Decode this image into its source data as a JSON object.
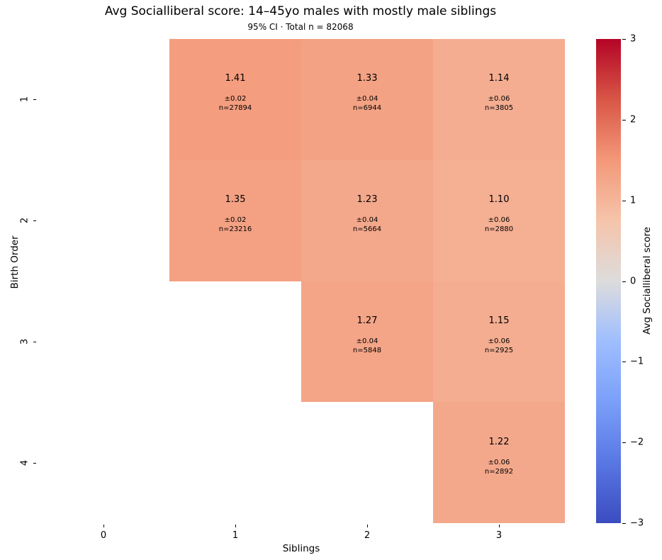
{
  "chart_data": {
    "type": "heatmap",
    "title": "Avg Socialliberal score: 14–45yo males with mostly male siblings",
    "subtitle": "95% CI · Total n = 82068",
    "xlabel": "Siblings",
    "ylabel": "Birth Order",
    "x_tick_labels": [
      "0",
      "1",
      "2",
      "3"
    ],
    "y_tick_labels": [
      "1",
      "2",
      "3",
      "4"
    ],
    "vmin": -3,
    "vmax": 3,
    "grid": false,
    "background": "#ffffff",
    "colorbar": {
      "label": "Avg Socialliberal score",
      "tick_labels": [
        "3",
        "2",
        "1",
        "0",
        "−1",
        "−2",
        "−3"
      ],
      "tick_values": [
        3,
        2,
        1,
        0,
        -1,
        -2,
        -3
      ]
    },
    "colormap": {
      "name": "coolwarm",
      "stops": [
        {
          "t": 0.0,
          "hex": "#3B4CC0"
        },
        {
          "t": 0.125,
          "hex": "#5977E3"
        },
        {
          "t": 0.25,
          "hex": "#7B9FF9"
        },
        {
          "t": 0.375,
          "hex": "#9EBEFF"
        },
        {
          "t": 0.5,
          "hex": "#DDDCDC"
        },
        {
          "t": 0.625,
          "hex": "#F5C4AA"
        },
        {
          "t": 0.75,
          "hex": "#F49879"
        },
        {
          "t": 0.875,
          "hex": "#D85646"
        },
        {
          "t": 1.0,
          "hex": "#B40426"
        }
      ]
    },
    "rows": [
      {
        "y_label": "1",
        "cells": [
          null,
          {
            "value": 1.41,
            "value_label": "1.41",
            "ci_label": "±0.02",
            "n_label": "n=27894"
          },
          {
            "value": 1.33,
            "value_label": "1.33",
            "ci_label": "±0.04",
            "n_label": "n=6944"
          },
          {
            "value": 1.14,
            "value_label": "1.14",
            "ci_label": "±0.06",
            "n_label": "n=3805"
          }
        ]
      },
      {
        "y_label": "2",
        "cells": [
          null,
          {
            "value": 1.35,
            "value_label": "1.35",
            "ci_label": "±0.02",
            "n_label": "n=23216"
          },
          {
            "value": 1.23,
            "value_label": "1.23",
            "ci_label": "±0.04",
            "n_label": "n=5664"
          },
          {
            "value": 1.1,
            "value_label": "1.10",
            "ci_label": "±0.06",
            "n_label": "n=2880"
          }
        ]
      },
      {
        "y_label": "3",
        "cells": [
          null,
          null,
          {
            "value": 1.27,
            "value_label": "1.27",
            "ci_label": "±0.04",
            "n_label": "n=5848"
          },
          {
            "value": 1.15,
            "value_label": "1.15",
            "ci_label": "±0.06",
            "n_label": "n=2925"
          }
        ]
      },
      {
        "y_label": "4",
        "cells": [
          null,
          null,
          null,
          {
            "value": 1.22,
            "value_label": "1.22",
            "ci_label": "±0.06",
            "n_label": "n=2892"
          }
        ]
      }
    ]
  }
}
